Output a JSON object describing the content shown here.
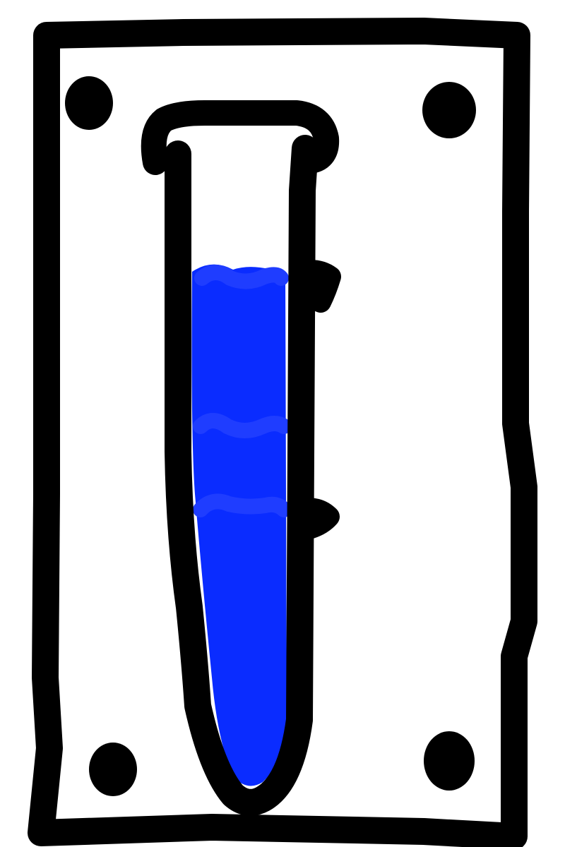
{
  "drawing": {
    "subject": "test-tube-in-rack",
    "colors": {
      "ink": "#000000",
      "liquid": "#0a2cff",
      "liquid_edge": "#1f3dff",
      "background": "#ffffff"
    },
    "liquid_fill_level": 0.78,
    "icons": [
      "plate-frame",
      "screw-icon",
      "test-tube-icon",
      "liquid-fill",
      "graduation-mark-icon"
    ]
  }
}
